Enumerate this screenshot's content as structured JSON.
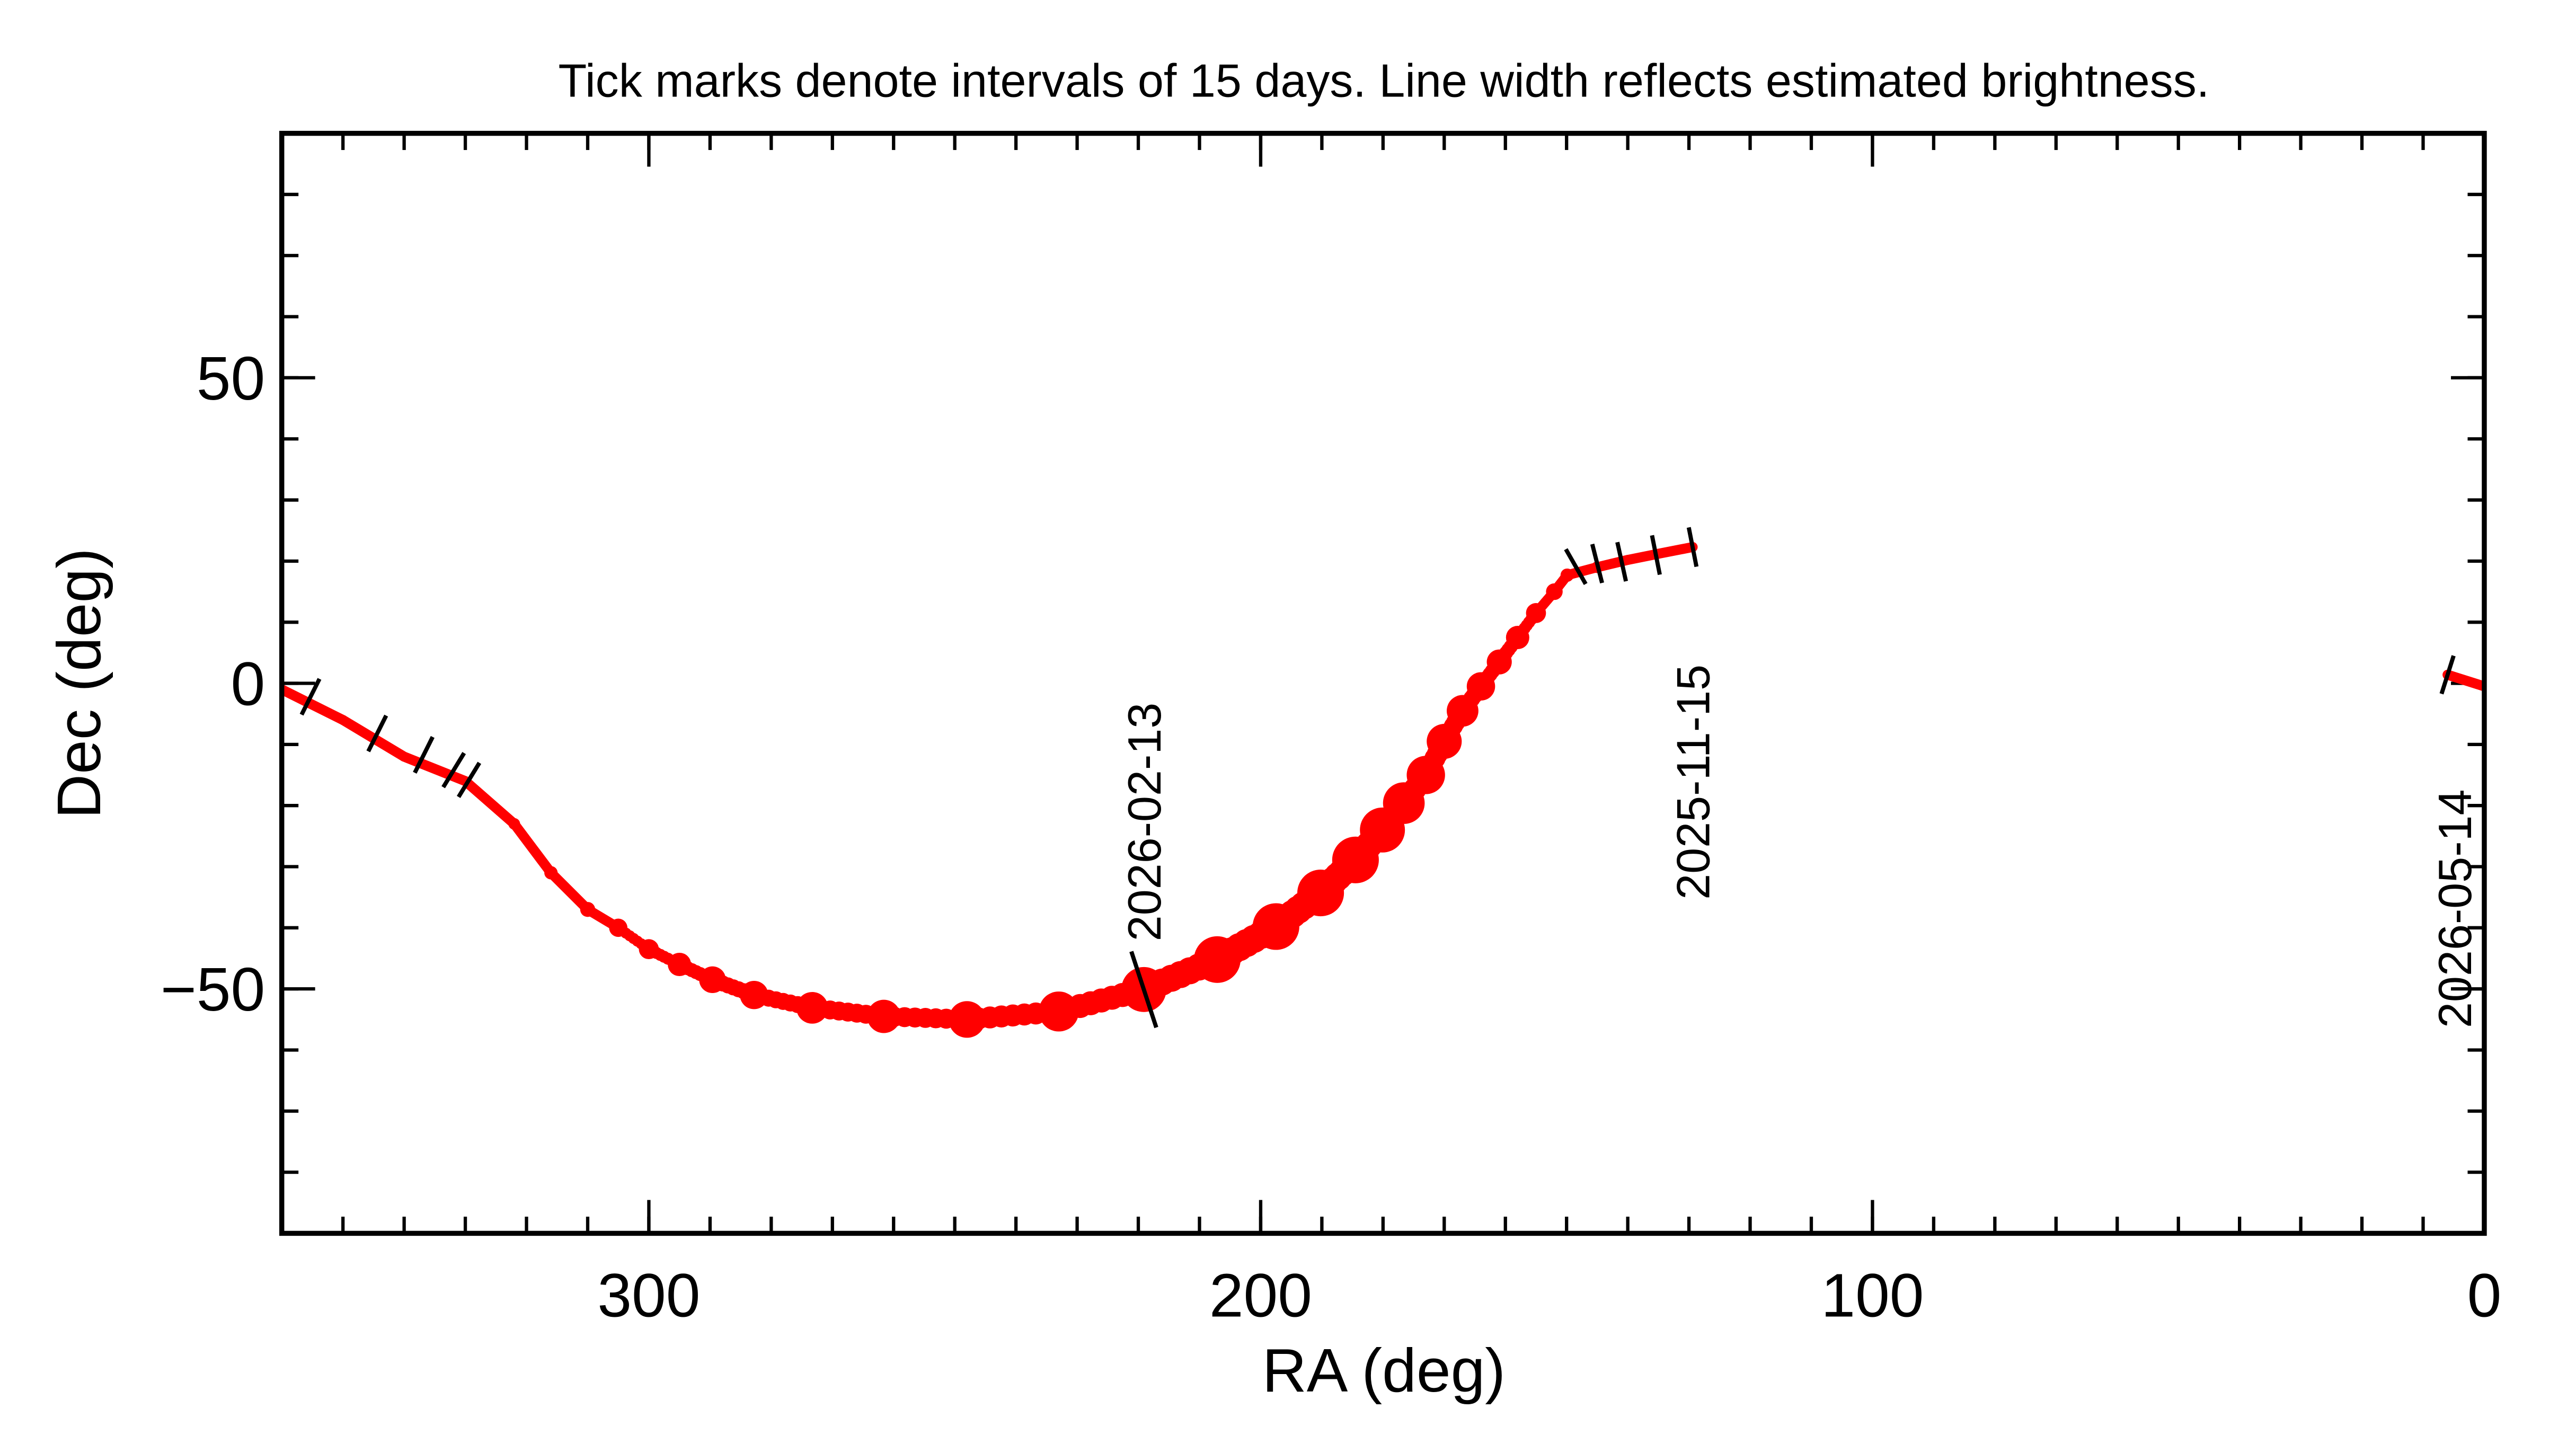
{
  "chart_data": {
    "type": "track",
    "title": "Tick marks denote intervals of 15 days.  Line width reflects estimated brightness.",
    "x_label": "RA (deg)",
    "y_label": "Dec (deg)",
    "xlim": [
      360,
      0
    ],
    "ylim": [
      -90,
      90
    ],
    "xticks": [
      300,
      200,
      100,
      0
    ],
    "yticks": [
      -50,
      0,
      50
    ],
    "xminor": 10,
    "yminor": 10,
    "color": "#ff0000",
    "tick_color": "#000000",
    "x": [
      129.4,
      135,
      140,
      145,
      149.9,
      152,
      155,
      158,
      161,
      164,
      167,
      170,
      173,
      176.6,
      180.1,
      184.5,
      190.2,
      197.5,
      207.1,
      219.1,
      233,
      248,
      261.6,
      273.3,
      282.8,
      289.6,
      295,
      300,
      305,
      310,
      316,
      322,
      330,
      340,
      350,
      360,
      null,
      0,
      6
    ],
    "values": [
      22.3,
      21.2,
      20.2,
      19,
      17.7,
      15,
      11.5,
      7.5,
      3.5,
      -0.5,
      -4.5,
      -9.5,
      -15,
      -19.6,
      -24,
      -28.9,
      -34.3,
      -39.8,
      -45.2,
      -50.1,
      -53.7,
      -55,
      -54.5,
      -53.1,
      -51,
      -48.5,
      -46,
      -43.5,
      -40,
      -37,
      -31,
      -23,
      -16,
      -12,
      -6,
      -1,
      null,
      -0.5,
      1.4
    ],
    "sizes": [
      6,
      6,
      6,
      7,
      8,
      10,
      12,
      14,
      15,
      17,
      19,
      21,
      23,
      25,
      27,
      28,
      28,
      28,
      28,
      27,
      24,
      22,
      20,
      19,
      17,
      16,
      14,
      12,
      11,
      9,
      8,
      7,
      6,
      6,
      6,
      6,
      null,
      6,
      6
    ],
    "interval_ticks": {
      "x": [
        355.3,
        344.4,
        336.8,
        331.9,
        329.4,
        219.1,
        148.5,
        145,
        141,
        135.4,
        129.4,
        6
      ],
      "y": [
        -2.2,
        -8.2,
        -11.7,
        -14.2,
        -15.8,
        -50.1,
        19.1,
        19.6,
        19.9,
        21,
        22.3,
        1.4
      ]
    },
    "annotations": [
      {
        "text": "2026-02-13",
        "x": 219.1,
        "y": -42.2
      },
      {
        "text": "2025-11-15",
        "x": 129.4,
        "y": -35.4
      },
      {
        "text": "2026-05-14",
        "x": 4.9,
        "y": -56.4
      }
    ]
  }
}
